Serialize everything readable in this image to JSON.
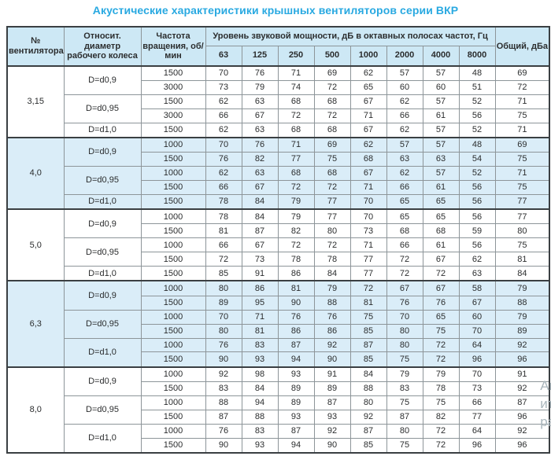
{
  "title": "Акустические характеристики крышных вентиляторов серии ВКР",
  "colors": {
    "title_accent": "#29a9e1",
    "header_bg": "#cde8f5",
    "band_bg": "#daedf8",
    "border_dark": "#3a3f42",
    "border_light": "#8d9599"
  },
  "table": {
    "headers": {
      "fan_no": "№ вентилятора",
      "rel_diameter": "Относит. диаметр рабочего колеса",
      "rotation": "Частота вращения, об/мин",
      "group": "Уровень звуковой мощности, дБ в октавных полосах частот, Гц",
      "octave_bands": [
        "63",
        "125",
        "250",
        "500",
        "1000",
        "2000",
        "4000",
        "8000"
      ],
      "total": "Общий, дБа"
    },
    "sections": [
      {
        "fan": "3,15",
        "shaded": false,
        "diameters": [
          {
            "label": "D=d0,9",
            "rows": [
              {
                "rpm": "1500",
                "levels": [
                  70,
                  76,
                  71,
                  69,
                  62,
                  57,
                  57,
                  48
                ],
                "total": 69
              },
              {
                "rpm": "3000",
                "levels": [
                  73,
                  79,
                  74,
                  72,
                  65,
                  60,
                  60,
                  51
                ],
                "total": 72
              }
            ]
          },
          {
            "label": "D=d0,95",
            "rows": [
              {
                "rpm": "1500",
                "levels": [
                  62,
                  63,
                  68,
                  68,
                  67,
                  62,
                  57,
                  52
                ],
                "total": 71
              },
              {
                "rpm": "3000",
                "levels": [
                  66,
                  67,
                  72,
                  72,
                  71,
                  66,
                  61,
                  56
                ],
                "total": 75
              }
            ]
          },
          {
            "label": "D=d1,0",
            "rows": [
              {
                "rpm": "1500",
                "levels": [
                  62,
                  63,
                  68,
                  68,
                  67,
                  62,
                  57,
                  52
                ],
                "total": 71
              }
            ]
          }
        ]
      },
      {
        "fan": "4,0",
        "shaded": true,
        "diameters": [
          {
            "label": "D=d0,9",
            "rows": [
              {
                "rpm": "1000",
                "levels": [
                  70,
                  76,
                  71,
                  69,
                  62,
                  57,
                  57,
                  48
                ],
                "total": 69
              },
              {
                "rpm": "1500",
                "levels": [
                  76,
                  82,
                  77,
                  75,
                  68,
                  63,
                  63,
                  54
                ],
                "total": 75
              }
            ]
          },
          {
            "label": "D=d0,95",
            "rows": [
              {
                "rpm": "1000",
                "levels": [
                  62,
                  63,
                  68,
                  68,
                  67,
                  62,
                  57,
                  52
                ],
                "total": 71
              },
              {
                "rpm": "1500",
                "levels": [
                  66,
                  67,
                  72,
                  72,
                  71,
                  66,
                  61,
                  56
                ],
                "total": 75
              }
            ]
          },
          {
            "label": "D=d1,0",
            "rows": [
              {
                "rpm": "1500",
                "levels": [
                  78,
                  84,
                  79,
                  77,
                  70,
                  65,
                  65,
                  56
                ],
                "total": 77
              }
            ]
          }
        ]
      },
      {
        "fan": "5,0",
        "shaded": false,
        "diameters": [
          {
            "label": "D=d0,9",
            "rows": [
              {
                "rpm": "1000",
                "levels": [
                  78,
                  84,
                  79,
                  77,
                  70,
                  65,
                  65,
                  56
                ],
                "total": 77
              },
              {
                "rpm": "1500",
                "levels": [
                  81,
                  87,
                  82,
                  80,
                  73,
                  68,
                  68,
                  59
                ],
                "total": 80
              }
            ]
          },
          {
            "label": "D=d0,95",
            "rows": [
              {
                "rpm": "1000",
                "levels": [
                  66,
                  67,
                  72,
                  72,
                  71,
                  66,
                  61,
                  56
                ],
                "total": 75
              },
              {
                "rpm": "1500",
                "levels": [
                  72,
                  73,
                  78,
                  78,
                  77,
                  72,
                  67,
                  62
                ],
                "total": 81
              }
            ]
          },
          {
            "label": "D=d1,0",
            "rows": [
              {
                "rpm": "1500",
                "levels": [
                  85,
                  91,
                  86,
                  84,
                  77,
                  72,
                  72,
                  63
                ],
                "total": 84
              }
            ]
          }
        ]
      },
      {
        "fan": "6,3",
        "shaded": true,
        "diameters": [
          {
            "label": "D=d0,9",
            "rows": [
              {
                "rpm": "1000",
                "levels": [
                  80,
                  86,
                  81,
                  79,
                  72,
                  67,
                  67,
                  58
                ],
                "total": 79
              },
              {
                "rpm": "1500",
                "levels": [
                  89,
                  95,
                  90,
                  88,
                  81,
                  76,
                  76,
                  67
                ],
                "total": 88
              }
            ]
          },
          {
            "label": "D=d0,95",
            "rows": [
              {
                "rpm": "1000",
                "levels": [
                  70,
                  71,
                  76,
                  76,
                  75,
                  70,
                  65,
                  60
                ],
                "total": 79
              },
              {
                "rpm": "1500",
                "levels": [
                  80,
                  81,
                  86,
                  86,
                  85,
                  80,
                  75,
                  70
                ],
                "total": 89
              }
            ]
          },
          {
            "label": "D=d1,0",
            "rows": [
              {
                "rpm": "1000",
                "levels": [
                  76,
                  83,
                  87,
                  92,
                  87,
                  80,
                  72,
                  64
                ],
                "total": 92
              },
              {
                "rpm": "1500",
                "levels": [
                  90,
                  93,
                  94,
                  90,
                  85,
                  75,
                  72,
                  96
                ],
                "total": 96
              }
            ]
          }
        ]
      },
      {
        "fan": "8,0",
        "shaded": false,
        "diameters": [
          {
            "label": "D=d0,9",
            "rows": [
              {
                "rpm": "1000",
                "levels": [
                  92,
                  98,
                  93,
                  91,
                  84,
                  79,
                  79,
                  70
                ],
                "total": 91
              },
              {
                "rpm": "1500",
                "levels": [
                  83,
                  84,
                  89,
                  89,
                  88,
                  83,
                  78,
                  73
                ],
                "total": 92
              }
            ]
          },
          {
            "label": "D=d0,95",
            "rows": [
              {
                "rpm": "1000",
                "levels": [
                  88,
                  94,
                  89,
                  87,
                  80,
                  75,
                  75,
                  66
                ],
                "total": 87
              },
              {
                "rpm": "1500",
                "levels": [
                  87,
                  88,
                  93,
                  93,
                  92,
                  87,
                  82,
                  77
                ],
                "total": 96
              }
            ]
          },
          {
            "label": "D=d1,0",
            "rows": [
              {
                "rpm": "1000",
                "levels": [
                  76,
                  83,
                  87,
                  92,
                  87,
                  80,
                  72,
                  64
                ],
                "total": 92
              },
              {
                "rpm": "1500",
                "levels": [
                  90,
                  93,
                  94,
                  90,
                  85,
                  75,
                  72,
                  96
                ],
                "total": 96
              }
            ]
          }
        ]
      }
    ]
  },
  "watermark": {
    "lines": [
      "Ан",
      "ит",
      "ра"
    ]
  }
}
